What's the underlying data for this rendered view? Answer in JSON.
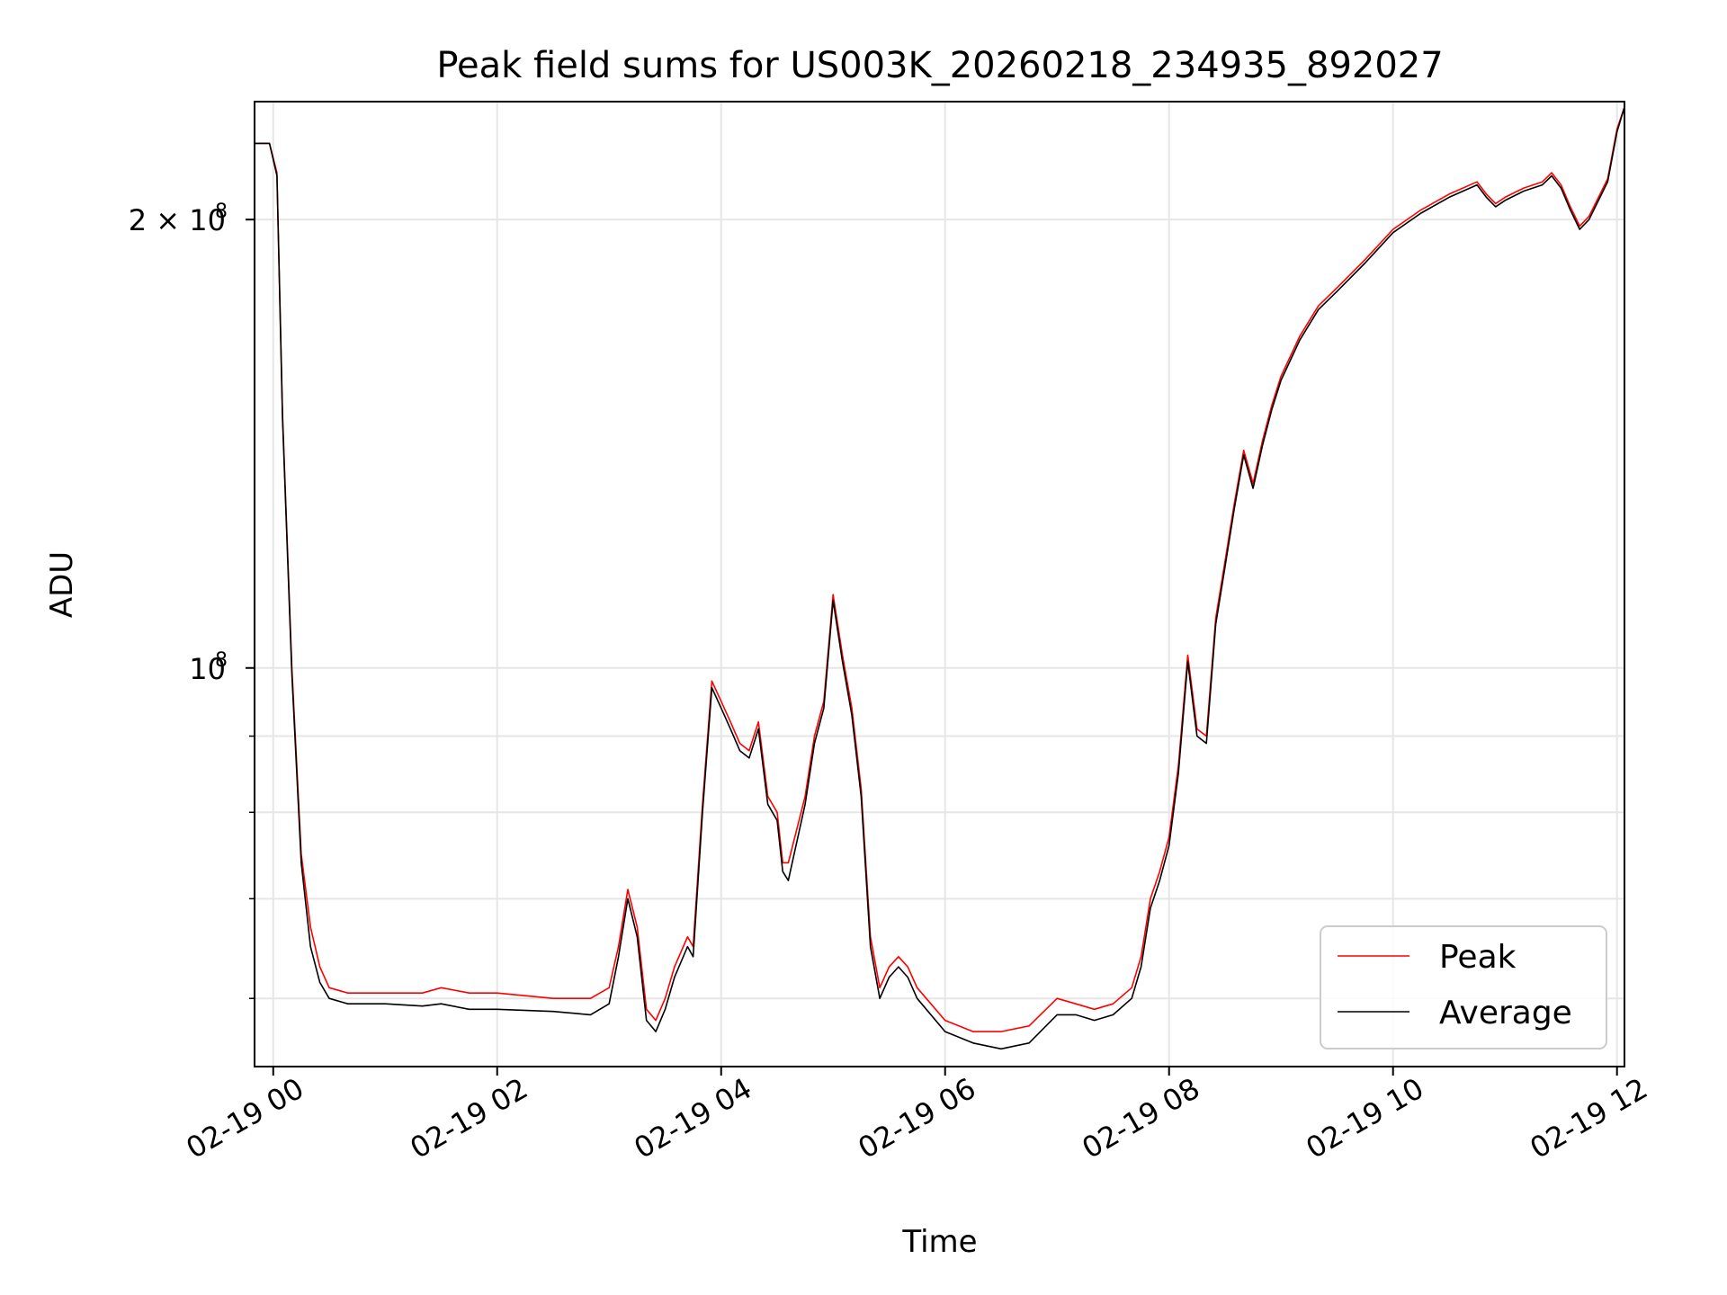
{
  "chart_data": {
    "type": "line",
    "title": "Peak field sums for US003K_20260218_234935_892027",
    "xlabel": "Time",
    "ylabel": "ADU",
    "y_scale": "log",
    "ylim": [
      54000000,
      240000000
    ],
    "xlim": [
      "2026-02-18 23:50",
      "2026-02-19 12:04"
    ],
    "grid": true,
    "legend_position": "lower right",
    "x_tick_labels": [
      "02-19 00",
      "02-19 02",
      "02-19 04",
      "02-19 06",
      "02-19 08",
      "02-19 10",
      "02-19 12"
    ],
    "x_tick_times": [
      "2026-02-19 00:00",
      "2026-02-19 02:00",
      "2026-02-19 04:00",
      "2026-02-19 06:00",
      "2026-02-19 08:00",
      "2026-02-19 10:00",
      "2026-02-19 12:00"
    ],
    "y_major_tick_labels": [
      {
        "value": 200000000,
        "label": "2 × 10",
        "exp": "8"
      },
      {
        "value": 100000000,
        "label": "10",
        "exp": "8"
      }
    ],
    "y_minor_ticks": [
      60000000,
      70000000,
      80000000,
      90000000
    ],
    "series": [
      {
        "name": "Peak",
        "color": "#ff0000",
        "x": [
          "2026-02-18 23:50",
          "2026-02-18 23:58",
          "2026-02-19 00:02",
          "2026-02-19 00:05",
          "2026-02-19 00:10",
          "2026-02-19 00:15",
          "2026-02-19 00:20",
          "2026-02-19 00:25",
          "2026-02-19 00:30",
          "2026-02-19 00:40",
          "2026-02-19 01:00",
          "2026-02-19 01:20",
          "2026-02-19 01:30",
          "2026-02-19 01:45",
          "2026-02-19 02:00",
          "2026-02-19 02:30",
          "2026-02-19 02:50",
          "2026-02-19 03:00",
          "2026-02-19 03:05",
          "2026-02-19 03:10",
          "2026-02-19 03:15",
          "2026-02-19 03:20",
          "2026-02-19 03:25",
          "2026-02-19 03:30",
          "2026-02-19 03:35",
          "2026-02-19 03:42",
          "2026-02-19 03:45",
          "2026-02-19 03:50",
          "2026-02-19 03:55",
          "2026-02-19 04:00",
          "2026-02-19 04:05",
          "2026-02-19 04:10",
          "2026-02-19 04:15",
          "2026-02-19 04:20",
          "2026-02-19 04:25",
          "2026-02-19 04:30",
          "2026-02-19 04:33",
          "2026-02-19 04:36",
          "2026-02-19 04:45",
          "2026-02-19 04:50",
          "2026-02-19 04:55",
          "2026-02-19 05:00",
          "2026-02-19 05:05",
          "2026-02-19 05:10",
          "2026-02-19 05:15",
          "2026-02-19 05:20",
          "2026-02-19 05:25",
          "2026-02-19 05:30",
          "2026-02-19 05:35",
          "2026-02-19 05:40",
          "2026-02-19 05:45",
          "2026-02-19 06:00",
          "2026-02-19 06:15",
          "2026-02-19 06:30",
          "2026-02-19 06:45",
          "2026-02-19 07:00",
          "2026-02-19 07:10",
          "2026-02-19 07:20",
          "2026-02-19 07:30",
          "2026-02-19 07:40",
          "2026-02-19 07:45",
          "2026-02-19 07:50",
          "2026-02-19 07:55",
          "2026-02-19 08:00",
          "2026-02-19 08:05",
          "2026-02-19 08:10",
          "2026-02-19 08:15",
          "2026-02-19 08:20",
          "2026-02-19 08:25",
          "2026-02-19 08:30",
          "2026-02-19 08:35",
          "2026-02-19 08:40",
          "2026-02-19 08:45",
          "2026-02-19 08:50",
          "2026-02-19 08:55",
          "2026-02-19 09:00",
          "2026-02-19 09:10",
          "2026-02-19 09:20",
          "2026-02-19 09:30",
          "2026-02-19 09:45",
          "2026-02-19 10:00",
          "2026-02-19 10:15",
          "2026-02-19 10:30",
          "2026-02-19 10:45",
          "2026-02-19 10:50",
          "2026-02-19 10:55",
          "2026-02-19 11:00",
          "2026-02-19 11:10",
          "2026-02-19 11:20",
          "2026-02-19 11:25",
          "2026-02-19 11:30",
          "2026-02-19 11:35",
          "2026-02-19 11:40",
          "2026-02-19 11:45",
          "2026-02-19 11:55",
          "2026-02-19 12:00",
          "2026-02-19 12:04"
        ],
        "values": [
          225000000,
          225000000,
          215000000,
          148000000,
          100000000,
          75000000,
          67000000,
          63000000,
          61000000,
          60500000,
          60500000,
          60500000,
          61000000,
          60500000,
          60500000,
          60000000,
          60000000,
          61000000,
          65000000,
          71000000,
          67000000,
          59000000,
          58000000,
          60000000,
          63000000,
          66000000,
          65000000,
          81000000,
          98000000,
          95000000,
          92000000,
          89000000,
          88000000,
          92000000,
          82000000,
          80000000,
          74000000,
          74000000,
          82000000,
          90000000,
          95000000,
          112000000,
          102000000,
          94000000,
          83000000,
          66000000,
          61000000,
          63000000,
          64000000,
          63000000,
          61000000,
          58000000,
          57000000,
          57000000,
          57500000,
          60000000,
          59500000,
          59000000,
          59500000,
          61000000,
          64000000,
          70000000,
          73000000,
          77000000,
          86000000,
          102000000,
          91000000,
          90000000,
          108000000,
          118000000,
          129000000,
          140000000,
          133000000,
          142000000,
          150000000,
          157000000,
          167000000,
          175000000,
          180000000,
          188000000,
          197000000,
          203000000,
          208000000,
          212000000,
          208000000,
          205000000,
          207000000,
          210000000,
          212000000,
          215000000,
          211000000,
          204000000,
          198000000,
          201000000,
          213000000,
          230000000,
          238000000
        ]
      },
      {
        "name": "Average",
        "color": "#000000",
        "x": [
          "2026-02-18 23:50",
          "2026-02-18 23:58",
          "2026-02-19 00:02",
          "2026-02-19 00:05",
          "2026-02-19 00:10",
          "2026-02-19 00:15",
          "2026-02-19 00:20",
          "2026-02-19 00:25",
          "2026-02-19 00:30",
          "2026-02-19 00:40",
          "2026-02-19 01:00",
          "2026-02-19 01:20",
          "2026-02-19 01:30",
          "2026-02-19 01:45",
          "2026-02-19 02:00",
          "2026-02-19 02:30",
          "2026-02-19 02:50",
          "2026-02-19 03:00",
          "2026-02-19 03:05",
          "2026-02-19 03:10",
          "2026-02-19 03:15",
          "2026-02-19 03:20",
          "2026-02-19 03:25",
          "2026-02-19 03:30",
          "2026-02-19 03:35",
          "2026-02-19 03:42",
          "2026-02-19 03:45",
          "2026-02-19 03:50",
          "2026-02-19 03:55",
          "2026-02-19 04:00",
          "2026-02-19 04:05",
          "2026-02-19 04:10",
          "2026-02-19 04:15",
          "2026-02-19 04:20",
          "2026-02-19 04:25",
          "2026-02-19 04:30",
          "2026-02-19 04:33",
          "2026-02-19 04:36",
          "2026-02-19 04:45",
          "2026-02-19 04:50",
          "2026-02-19 04:55",
          "2026-02-19 05:00",
          "2026-02-19 05:05",
          "2026-02-19 05:10",
          "2026-02-19 05:15",
          "2026-02-19 05:20",
          "2026-02-19 05:25",
          "2026-02-19 05:30",
          "2026-02-19 05:35",
          "2026-02-19 05:40",
          "2026-02-19 05:45",
          "2026-02-19 06:00",
          "2026-02-19 06:15",
          "2026-02-19 06:30",
          "2026-02-19 06:45",
          "2026-02-19 07:00",
          "2026-02-19 07:10",
          "2026-02-19 07:20",
          "2026-02-19 07:30",
          "2026-02-19 07:40",
          "2026-02-19 07:45",
          "2026-02-19 07:50",
          "2026-02-19 07:55",
          "2026-02-19 08:00",
          "2026-02-19 08:05",
          "2026-02-19 08:10",
          "2026-02-19 08:15",
          "2026-02-19 08:20",
          "2026-02-19 08:25",
          "2026-02-19 08:30",
          "2026-02-19 08:35",
          "2026-02-19 08:40",
          "2026-02-19 08:45",
          "2026-02-19 08:50",
          "2026-02-19 08:55",
          "2026-02-19 09:00",
          "2026-02-19 09:10",
          "2026-02-19 09:20",
          "2026-02-19 09:30",
          "2026-02-19 09:45",
          "2026-02-19 10:00",
          "2026-02-19 10:15",
          "2026-02-19 10:30",
          "2026-02-19 10:45",
          "2026-02-19 10:50",
          "2026-02-19 10:55",
          "2026-02-19 11:00",
          "2026-02-19 11:10",
          "2026-02-19 11:20",
          "2026-02-19 11:25",
          "2026-02-19 11:30",
          "2026-02-19 11:35",
          "2026-02-19 11:40",
          "2026-02-19 11:45",
          "2026-02-19 11:55",
          "2026-02-19 12:00",
          "2026-02-19 12:04"
        ],
        "values": [
          225000000,
          225000000,
          214000000,
          147000000,
          99000000,
          74000000,
          65000000,
          61500000,
          60000000,
          59500000,
          59500000,
          59300000,
          59500000,
          59000000,
          59000000,
          58800000,
          58500000,
          59500000,
          64000000,
          70000000,
          66000000,
          58000000,
          57000000,
          59000000,
          62000000,
          65000000,
          64000000,
          80000000,
          97000000,
          94000000,
          91000000,
          88000000,
          87000000,
          91000000,
          81000000,
          79000000,
          73000000,
          72000000,
          81000000,
          89000000,
          94000000,
          111000000,
          101000000,
          93000000,
          82000000,
          65000000,
          60000000,
          62000000,
          63000000,
          62000000,
          60000000,
          57000000,
          56000000,
          55500000,
          56000000,
          58500000,
          58500000,
          58000000,
          58500000,
          60000000,
          63000000,
          69000000,
          72000000,
          76000000,
          85000000,
          101000000,
          90000000,
          89000000,
          107000000,
          117000000,
          128000000,
          139000000,
          132000000,
          141000000,
          149000000,
          156000000,
          166000000,
          174000000,
          179000000,
          187000000,
          196000000,
          202000000,
          207000000,
          211000000,
          207000000,
          204000000,
          206000000,
          209000000,
          211000000,
          214000000,
          210000000,
          203000000,
          197000000,
          200000000,
          212000000,
          229000000,
          238000000
        ]
      }
    ]
  }
}
